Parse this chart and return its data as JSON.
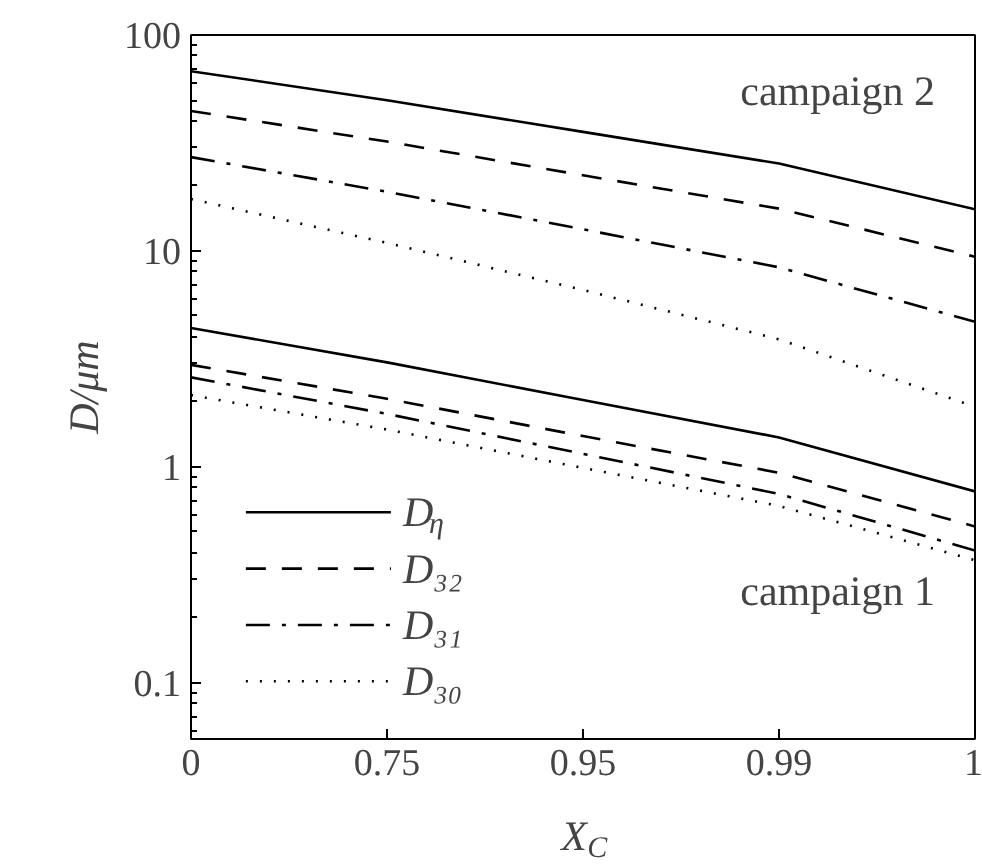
{
  "chart_data": {
    "type": "line",
    "xlabel": "X$_{C}$",
    "ylabel": "D/μm",
    "log": "y",
    "categories": [
      "0",
      "0.75",
      "0.95",
      "0.99",
      "1"
    ],
    "ylim": [
      0.055,
      100
    ],
    "yticks": [
      0.1,
      1,
      10,
      100
    ],
    "grid": false,
    "legend": "bottom left",
    "marker": "none",
    "annotations": [
      "campaign 2",
      "campaign 1"
    ],
    "series": [
      {
        "name": "D$_{η}$",
        "color": "#000000",
        "line_style": "solid",
        "values": [
          68,
          49.9,
          35.6,
          25.4,
          15.6
        ]
      },
      {
        "name": "D₃₂",
        "color": "#000000",
        "line_style": "dashed",
        "values": [
          44.5,
          32.1,
          22.4,
          15.7,
          9.4
        ]
      },
      {
        "name": "D₃₁",
        "color": "#000000",
        "line_style": "dashdot",
        "values": [
          27.2,
          18.8,
          12.6,
          8.4,
          4.7
        ]
      },
      {
        "name": "D₃₀",
        "color": "#000000",
        "line_style": "dotted",
        "values": [
          17.4,
          10.9,
          6.6,
          3.9,
          1.9
        ]
      },
      {
        "color": "#000000",
        "line_style": "solid",
        "values": [
          4.4,
          3.05,
          2.04,
          1.37,
          0.77
        ]
      },
      {
        "color": "#000000",
        "line_style": "dashed",
        "values": [
          2.97,
          2.07,
          1.39,
          0.94,
          0.53
        ]
      },
      {
        "color": "#000000",
        "line_style": "dashdot",
        "values": [
          2.6,
          1.76,
          1.15,
          0.75,
          0.41
        ]
      },
      {
        "color": "#000000",
        "line_style": "dotted",
        "values": [
          2.15,
          1.49,
          0.99,
          0.66,
          0.37
        ]
      }
    ]
  }
}
